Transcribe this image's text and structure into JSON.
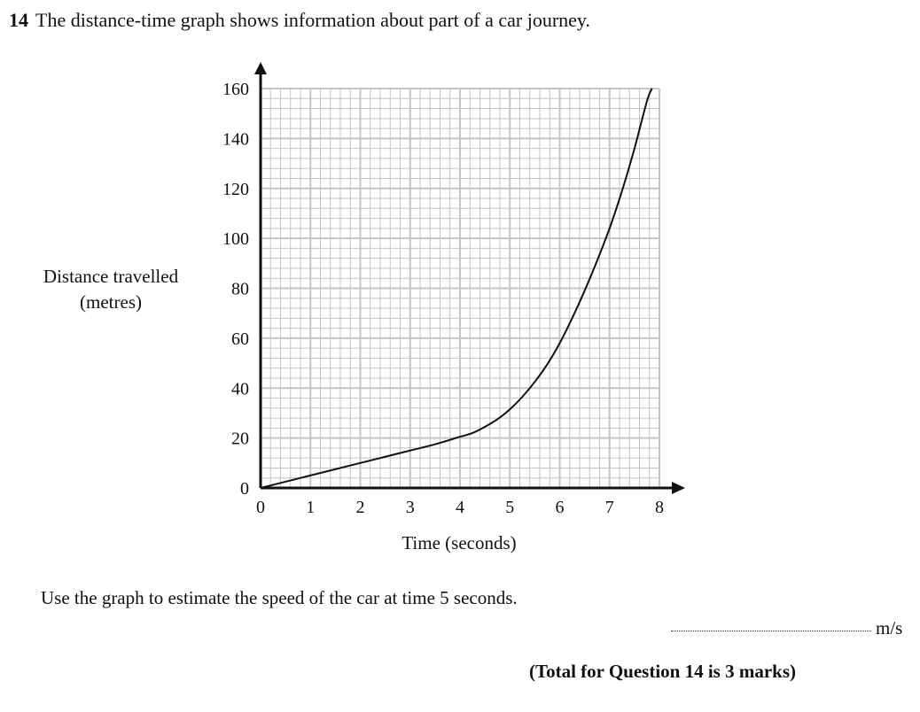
{
  "question": {
    "number": "14",
    "text": "The distance-time graph shows information about part of a car journey.",
    "instruction": "Use the graph to estimate the speed of the car at time 5 seconds.",
    "answer_units": "m/s",
    "total": "(Total for Question 14 is 3 marks)"
  },
  "chart_data": {
    "type": "line",
    "title": "",
    "xlabel": "Time (seconds)",
    "ylabel_lines": [
      "Distance travelled",
      "(metres)"
    ],
    "xlim": [
      0,
      8
    ],
    "ylim": [
      0,
      160
    ],
    "x_ticks": [
      0,
      1,
      2,
      3,
      4,
      5,
      6,
      7,
      8
    ],
    "y_ticks": [
      0,
      20,
      40,
      60,
      80,
      100,
      120,
      140,
      160
    ],
    "x_tick_labels": [
      "0",
      "1",
      "2",
      "3",
      "4",
      "5",
      "6",
      "7",
      "8"
    ],
    "y_tick_labels": [
      "0",
      "20",
      "40",
      "60",
      "80",
      "100",
      "120",
      "140",
      "160"
    ],
    "grid": true,
    "grid_minor_divisions": 5,
    "curve_color": "#111111",
    "grid_color": "#c4c4c4",
    "series": [
      {
        "x": [
          0,
          0.5,
          1,
          1.5,
          2,
          2.5,
          3,
          3.5,
          4,
          4.25,
          4.5,
          4.75,
          5,
          5.25,
          5.5,
          5.75,
          6,
          6.25,
          6.5,
          6.75,
          7,
          7.25,
          7.5,
          7.75,
          7.85
        ],
        "y": [
          0,
          2.5,
          5,
          7.5,
          10,
          12.5,
          15,
          17.5,
          20.5,
          22,
          24.5,
          27.5,
          31.5,
          36.5,
          42.5,
          49.5,
          58,
          68,
          79,
          91,
          104,
          119,
          136,
          155,
          160
        ]
      }
    ]
  }
}
